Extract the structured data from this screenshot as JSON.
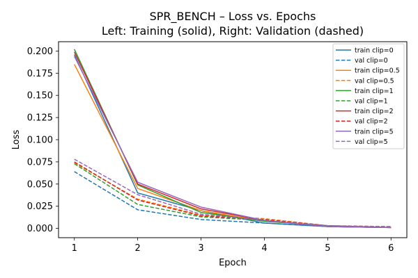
{
  "chart_data": {
    "type": "line",
    "title": "SPR_BENCH – Loss vs. Epochs",
    "subtitle": "Left: Training (solid), Right: Validation (dashed)",
    "xlabel": "Epoch",
    "ylabel": "Loss",
    "x": [
      1,
      2,
      3,
      4,
      5,
      6
    ],
    "xlim": [
      0.75,
      6.25
    ],
    "ylim": [
      -0.0105,
      0.2105
    ],
    "xticks": [
      "1",
      "2",
      "3",
      "4",
      "5",
      "6"
    ],
    "yticks": [
      "0.000",
      "0.025",
      "0.050",
      "0.075",
      "0.100",
      "0.125",
      "0.150",
      "0.175",
      "0.200"
    ],
    "grid": false,
    "legend_position": "upper-right",
    "series": [
      {
        "name": "train clip=0",
        "color": "#1f77b4",
        "style": "solid",
        "values": [
          0.196,
          0.04,
          0.02,
          0.006,
          0.002,
          0.001
        ]
      },
      {
        "name": "val clip=0",
        "color": "#1f77b4",
        "style": "dashed",
        "values": [
          0.064,
          0.021,
          0.01,
          0.006,
          0.002,
          0.001
        ]
      },
      {
        "name": "train clip=0.5",
        "color": "#ff7f0e",
        "style": "solid",
        "values": [
          0.185,
          0.045,
          0.02,
          0.008,
          0.003,
          0.001
        ]
      },
      {
        "name": "val clip=0.5",
        "color": "#ff7f0e",
        "style": "dashed",
        "values": [
          0.074,
          0.033,
          0.015,
          0.011,
          0.003,
          0.002
        ]
      },
      {
        "name": "train clip=1",
        "color": "#2ca02c",
        "style": "solid",
        "values": [
          0.202,
          0.049,
          0.018,
          0.008,
          0.003,
          0.001
        ]
      },
      {
        "name": "val clip=1",
        "color": "#2ca02c",
        "style": "dashed",
        "values": [
          0.073,
          0.027,
          0.013,
          0.009,
          0.002,
          0.001
        ]
      },
      {
        "name": "train clip=2",
        "color": "#d62728",
        "style": "solid",
        "values": [
          0.199,
          0.05,
          0.022,
          0.009,
          0.002,
          0.001
        ]
      },
      {
        "name": "val clip=2",
        "color": "#d62728",
        "style": "dashed",
        "values": [
          0.075,
          0.032,
          0.014,
          0.01,
          0.003,
          0.001
        ]
      },
      {
        "name": "train clip=5",
        "color": "#9467bd",
        "style": "solid",
        "values": [
          0.194,
          0.052,
          0.024,
          0.009,
          0.002,
          0.001
        ]
      },
      {
        "name": "val clip=5",
        "color": "#9467bd",
        "style": "dashed",
        "values": [
          0.078,
          0.038,
          0.016,
          0.009,
          0.003,
          0.002
        ]
      }
    ]
  }
}
